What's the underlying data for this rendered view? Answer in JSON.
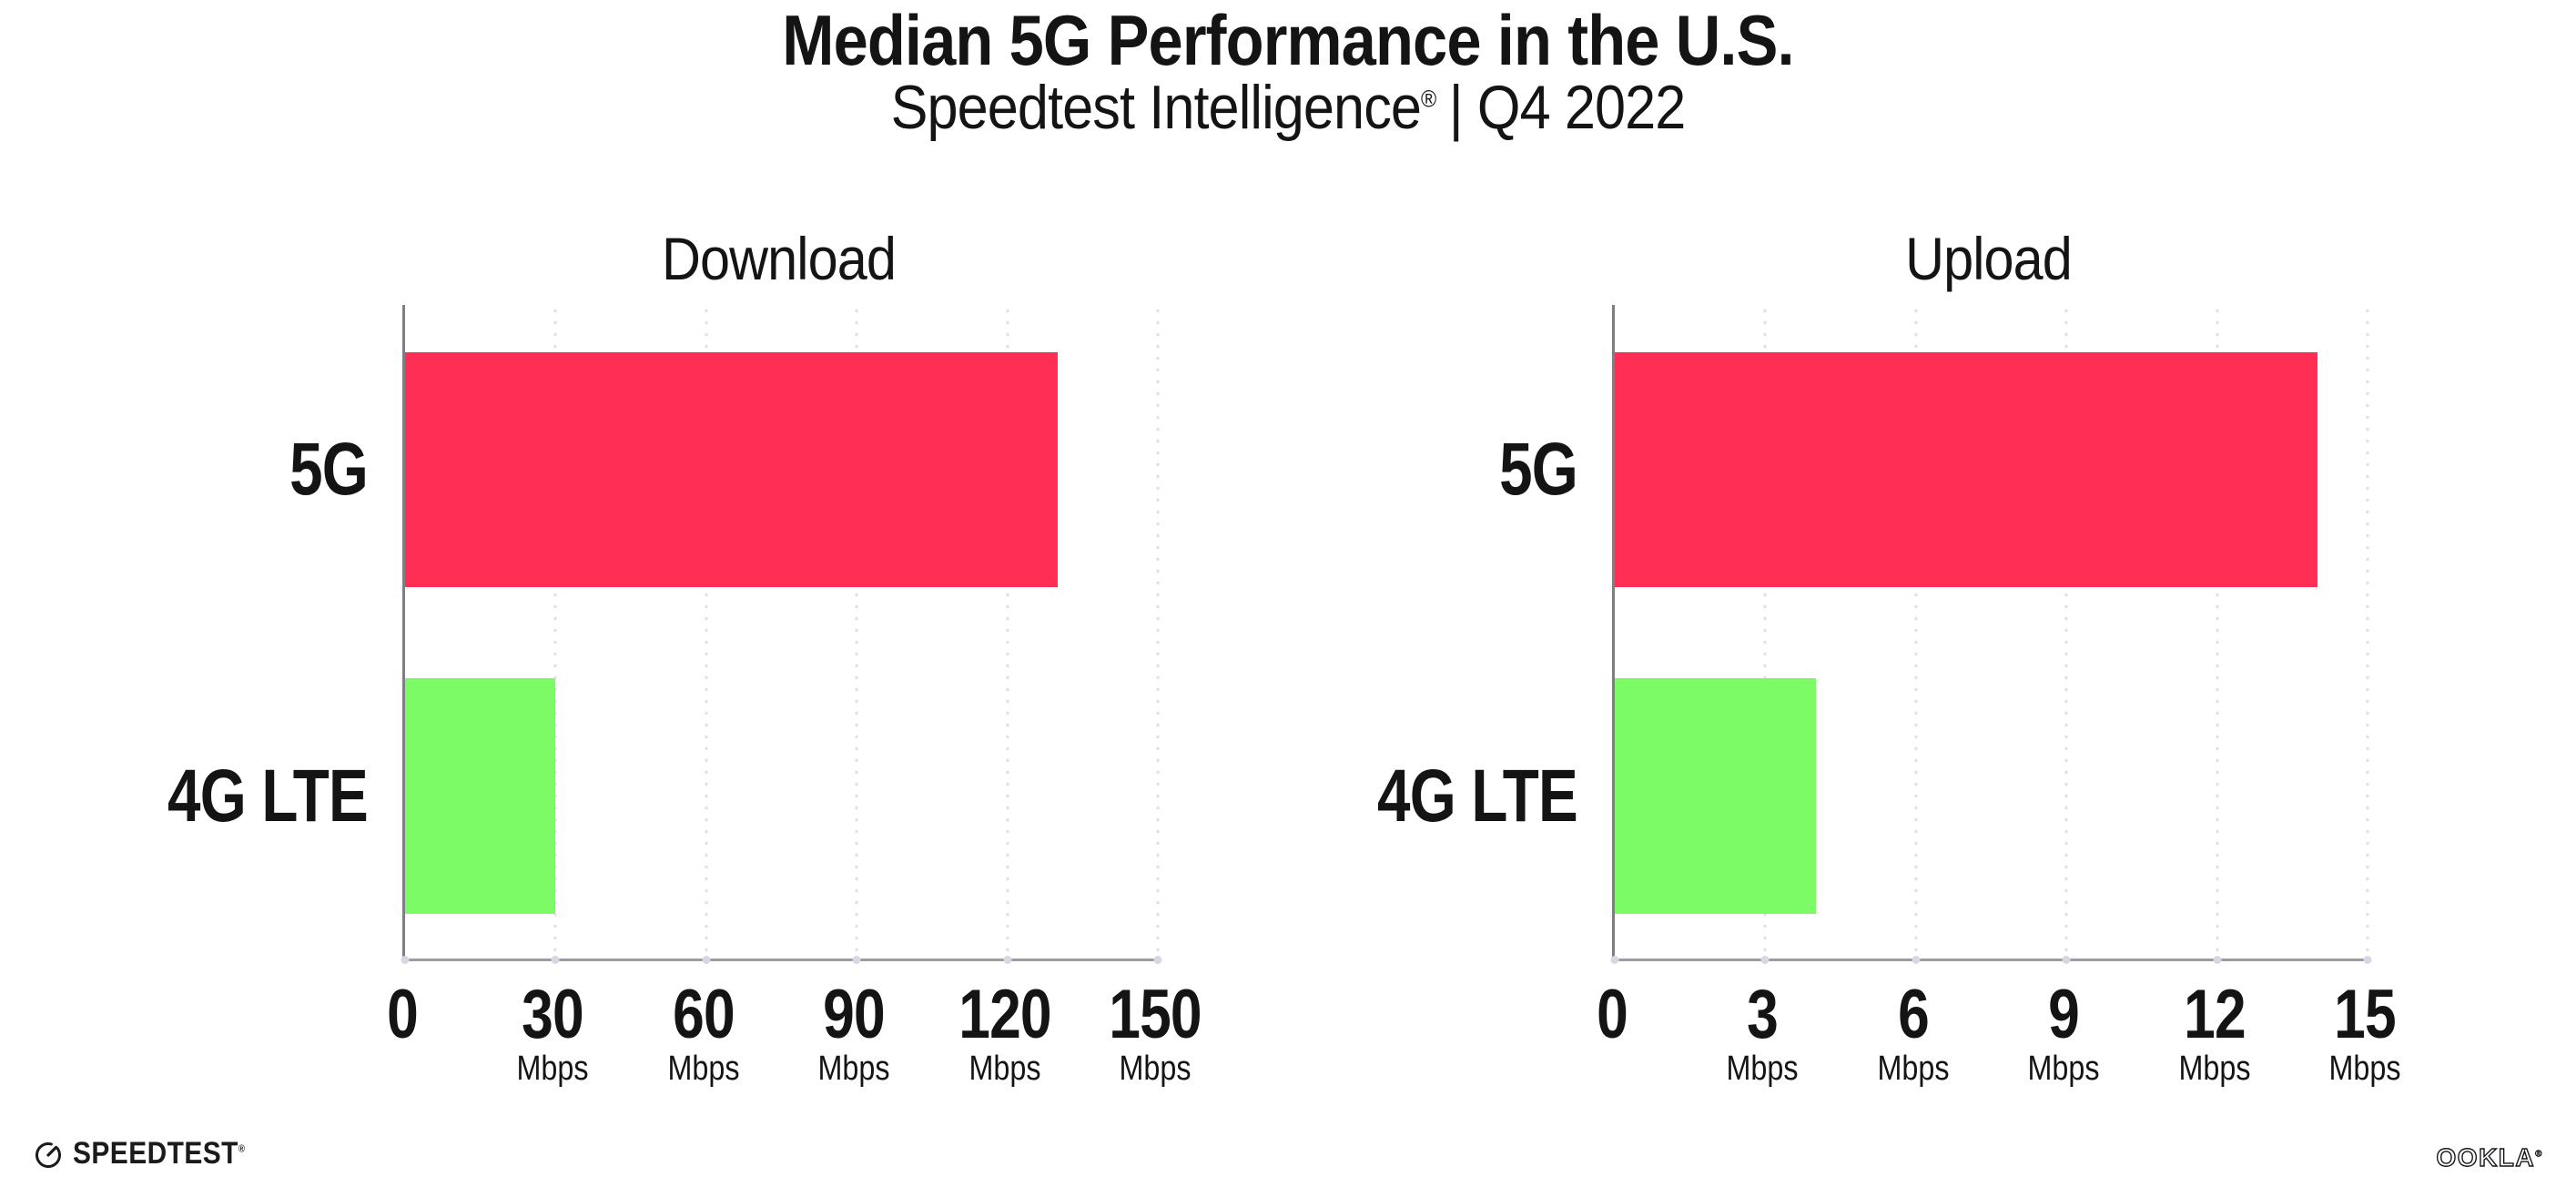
{
  "header": {
    "title": "Median 5G Performance in the U.S.",
    "subtitle_brand": "Speedtest Intelligence",
    "subtitle_reg": "®",
    "subtitle_rest": "| Q4 2022"
  },
  "chart_data": [
    {
      "type": "bar",
      "orientation": "horizontal",
      "title": "Download",
      "categories": [
        "5G",
        "4G LTE"
      ],
      "values": [
        130,
        30
      ],
      "unit": "Mbps",
      "xlabel": "",
      "ylabel": "",
      "xlim": [
        0,
        150
      ],
      "xticks": [
        0,
        30,
        60,
        90,
        120,
        150
      ],
      "series_colors": [
        "#FF2E55",
        "#7DFB66"
      ],
      "grid": "vertical-dotted",
      "legend": "none"
    },
    {
      "type": "bar",
      "orientation": "horizontal",
      "title": "Upload",
      "categories": [
        "5G",
        "4G LTE"
      ],
      "values": [
        14,
        4
      ],
      "unit": "Mbps",
      "xlabel": "",
      "ylabel": "",
      "xlim": [
        0,
        15
      ],
      "xticks": [
        0,
        3,
        6,
        9,
        12,
        15
      ],
      "series_colors": [
        "#FF2E55",
        "#7DFB66"
      ],
      "grid": "vertical-dotted",
      "legend": "none"
    }
  ],
  "footer": {
    "speedtest_label": "SPEEDTEST",
    "speedtest_reg": "®",
    "ookla_label": "OOKLA",
    "ookla_reg": "®"
  },
  "colors": {
    "bar_5g": "#FF2E55",
    "bar_4g_lte": "#7DFB66",
    "gridline": "#DFE0EA",
    "tick_dot": "#D6D7E2",
    "axis_left": "#7E7E84",
    "axis_bottom": "#9B9BA1",
    "text": "#141414"
  }
}
